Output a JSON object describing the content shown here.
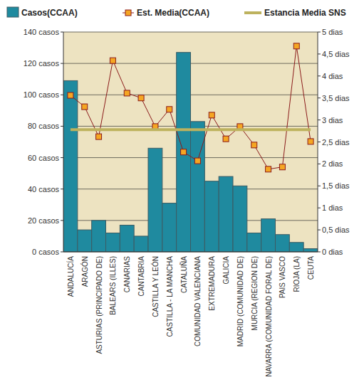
{
  "chart_data": {
    "type": "bar",
    "categories": [
      "ANDALUCÍA",
      "ARAGÓN",
      "ASTURIAS (PRINCIPADO DE)",
      "BALEARS (ILLES)",
      "CANARIAS",
      "CANTABRIA",
      "CASTILLA Y LEÓN",
      "CASTILLA - LA MANCHA",
      "CATALUÑA",
      "COMUNIDAD VALENCIANA",
      "EXTREMADURA",
      "GALICIA",
      "MADRID (COMUNIDAD DE)",
      "MURCIA (REGION DE)",
      "NAVARRA (COMUNIDAD FORAL DE)",
      "PAIS VASCO",
      "RIOJA (LA)",
      "CEUTA"
    ],
    "series": [
      {
        "name": "Casos(CCAA)",
        "type": "bar",
        "color": "#1f8a9f",
        "values": [
          109,
          14,
          20,
          12,
          17,
          10,
          66,
          31,
          127,
          83,
          45,
          48,
          42,
          12,
          21,
          11,
          6,
          2
        ]
      },
      {
        "name": "Est. Media(CCAA)",
        "type": "line",
        "axis": "y2",
        "color": "#8b1a1a",
        "marker": "square",
        "values": [
          3.56,
          3.3,
          2.62,
          4.35,
          3.61,
          3.5,
          2.85,
          3.24,
          2.27,
          2.07,
          3.11,
          2.57,
          2.85,
          2.43,
          1.88,
          1.93,
          4.68,
          2.51
        ]
      },
      {
        "name": "Estancia Media SNS",
        "type": "line",
        "axis": "y2",
        "color": "#bdb25e",
        "line_style": "solid",
        "values": [
          2.78,
          2.78,
          2.78,
          2.78,
          2.78,
          2.78,
          2.78,
          2.78,
          2.78,
          2.78,
          2.78,
          2.78,
          2.78,
          2.78,
          2.78,
          2.78,
          2.78,
          2.78
        ]
      }
    ],
    "ylim": [
      0,
      140
    ],
    "yticks": [
      {
        "value": 0,
        "label": "0 casos"
      },
      {
        "value": 20,
        "label": "20 casos"
      },
      {
        "value": 40,
        "label": "40 casos"
      },
      {
        "value": 60,
        "label": "60 casos"
      },
      {
        "value": 80,
        "label": "80 casos"
      },
      {
        "value": 100,
        "label": "100 casos"
      },
      {
        "value": 120,
        "label": "120 casos"
      },
      {
        "value": 140,
        "label": "140 casos"
      }
    ],
    "y2lim": [
      0,
      5
    ],
    "y2ticks": [
      {
        "value": 0,
        "label": "0 dias"
      },
      {
        "value": 0.5,
        "label": "0,5 dias"
      },
      {
        "value": 1,
        "label": "1 dias"
      },
      {
        "value": 1.5,
        "label": "1,5 dias"
      },
      {
        "value": 2,
        "label": "2 dias"
      },
      {
        "value": 2.5,
        "label": "2,5 dias"
      },
      {
        "value": 3,
        "label": "3 dias"
      },
      {
        "value": 3.5,
        "label": "3,5 dias"
      },
      {
        "value": 4,
        "label": "4 dias"
      },
      {
        "value": 4.5,
        "label": "4,5 dias"
      },
      {
        "value": 5,
        "label": "5 dias"
      }
    ],
    "grid": true,
    "legend": "top"
  }
}
